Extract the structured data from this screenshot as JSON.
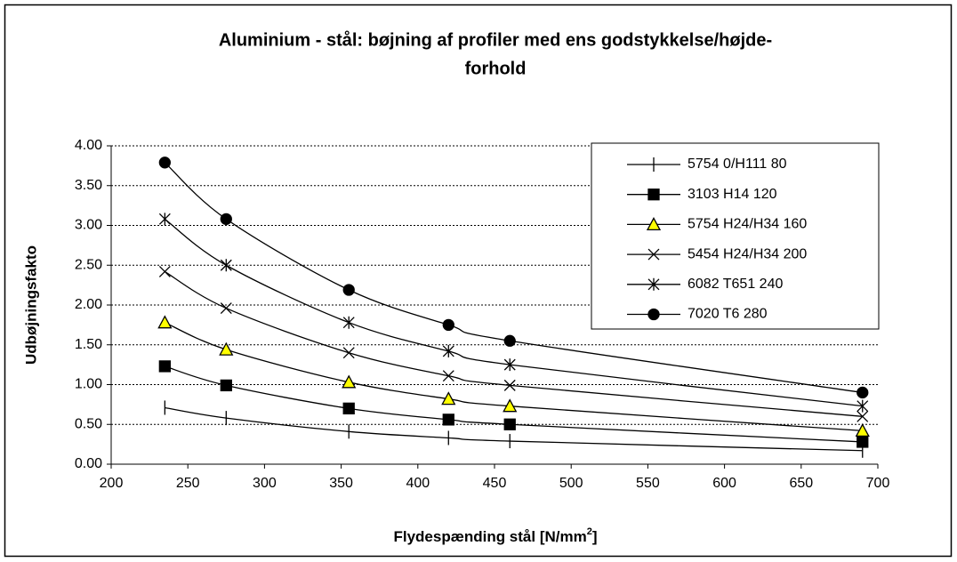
{
  "chart_data": {
    "type": "line",
    "title": [
      "Aluminium - stål: bøjning af profiler med ens godstykkelse/højde-",
      "forhold"
    ],
    "xlabel": [
      "Flydespænding stål [N/mm",
      "2",
      "]"
    ],
    "ylabel": "Udbøjningsfakto",
    "x": [
      235,
      275,
      355,
      420,
      460,
      690
    ],
    "series": [
      {
        "name": "5754 0/H111 80",
        "color": "#000000",
        "marker": "tick",
        "values": [
          0.71,
          0.58,
          0.41,
          0.33,
          0.29,
          0.17
        ]
      },
      {
        "name": "3103 H14 120",
        "color": "#000000",
        "marker": "square",
        "values": [
          1.23,
          0.99,
          0.7,
          0.56,
          0.5,
          0.28
        ]
      },
      {
        "name": "5754 H24/H34 160",
        "color": "#000000",
        "marker": "triangle",
        "values": [
          1.78,
          1.44,
          1.03,
          0.82,
          0.73,
          0.42
        ]
      },
      {
        "name": "5454 H24/H34 200",
        "color": "#000000",
        "marker": "x",
        "values": [
          2.42,
          1.96,
          1.4,
          1.11,
          0.99,
          0.6
        ]
      },
      {
        "name": "6082 T651 240",
        "color": "#000000",
        "marker": "asterisk",
        "values": [
          3.08,
          2.5,
          1.78,
          1.42,
          1.25,
          0.73
        ]
      },
      {
        "name": "7020 T6 280",
        "color": "#000000",
        "marker": "circle",
        "values": [
          3.79,
          3.08,
          2.19,
          1.75,
          1.55,
          0.9
        ]
      }
    ],
    "xlim": [
      200,
      700
    ],
    "xticks": [
      200,
      250,
      300,
      350,
      400,
      450,
      500,
      550,
      600,
      650,
      700
    ],
    "ylim": [
      0,
      4
    ],
    "yticks": [
      {
        "value": 0,
        "label": "0.00"
      },
      {
        "value": 0.5,
        "label": "0.50"
      },
      {
        "value": 1,
        "label": "1.00"
      },
      {
        "value": 1.5,
        "label": "1.50"
      },
      {
        "value": 2,
        "label": "2.00"
      },
      {
        "value": 2.5,
        "label": "2.50"
      },
      {
        "value": 3,
        "label": "3.00"
      },
      {
        "value": 3.5,
        "label": "3.50"
      },
      {
        "value": 4,
        "label": "4.00"
      }
    ],
    "grid": true,
    "legend": "top-right",
    "triangle_fill": "#ffff00"
  }
}
